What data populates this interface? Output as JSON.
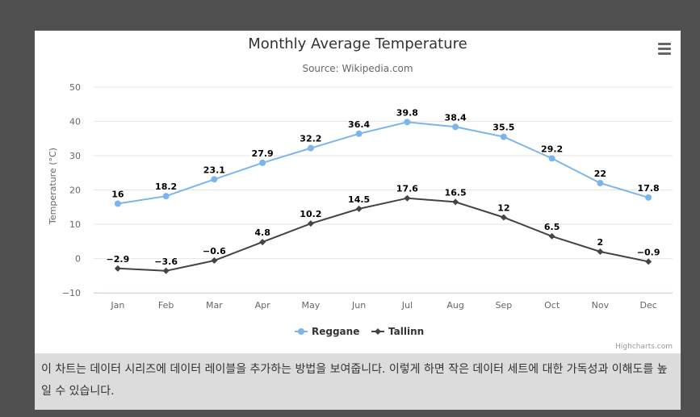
{
  "colors": {
    "series1": "#7cb5ec",
    "series2": "#434348",
    "grid": "#e6e6e6",
    "axis_line": "#ccd6eb",
    "label": "#666666"
  },
  "menu_icon": "hamburger-menu-icon",
  "credits": "Highcharts.com",
  "caption": "이 차트는 데이터 시리즈에 데이터 레이블을 추가하는 방법을 보여줍니다. 이렇게 하면 작은 데이터 세트에 대한 가독성과 이해도를 높일 수 있습니다.",
  "chart_data": {
    "type": "line",
    "title": "Monthly Average Temperature",
    "subtitle": "Source: Wikipedia.com",
    "xlabel": "",
    "ylabel": "Temperature (°C)",
    "categories": [
      "Jan",
      "Feb",
      "Mar",
      "Apr",
      "May",
      "Jun",
      "Jul",
      "Aug",
      "Sep",
      "Oct",
      "Nov",
      "Dec"
    ],
    "ylim": [
      -10,
      50
    ],
    "yticks": [
      -10,
      0,
      10,
      20,
      30,
      40,
      50
    ],
    "ytick_labels": [
      "−10",
      "0",
      "10",
      "20",
      "30",
      "40",
      "50"
    ],
    "grid": true,
    "legend": "bottom-center",
    "series": [
      {
        "name": "Reggane",
        "marker": "circle",
        "values": [
          16,
          18.2,
          23.1,
          27.9,
          32.2,
          36.4,
          39.8,
          38.4,
          35.5,
          29.2,
          22,
          17.8
        ],
        "labels": [
          "16",
          "18.2",
          "23.1",
          "27.9",
          "32.2",
          "36.4",
          "39.8",
          "38.4",
          "35.5",
          "29.2",
          "22",
          "17.8"
        ]
      },
      {
        "name": "Tallinn",
        "marker": "diamond",
        "values": [
          -2.9,
          -3.6,
          -0.6,
          4.8,
          10.2,
          14.5,
          17.6,
          16.5,
          12,
          6.5,
          2,
          -0.9
        ],
        "labels": [
          "−2.9",
          "−3.6",
          "−0.6",
          "4.8",
          "10.2",
          "14.5",
          "17.6",
          "16.5",
          "12",
          "6.5",
          "2",
          "−0.9"
        ]
      }
    ]
  }
}
